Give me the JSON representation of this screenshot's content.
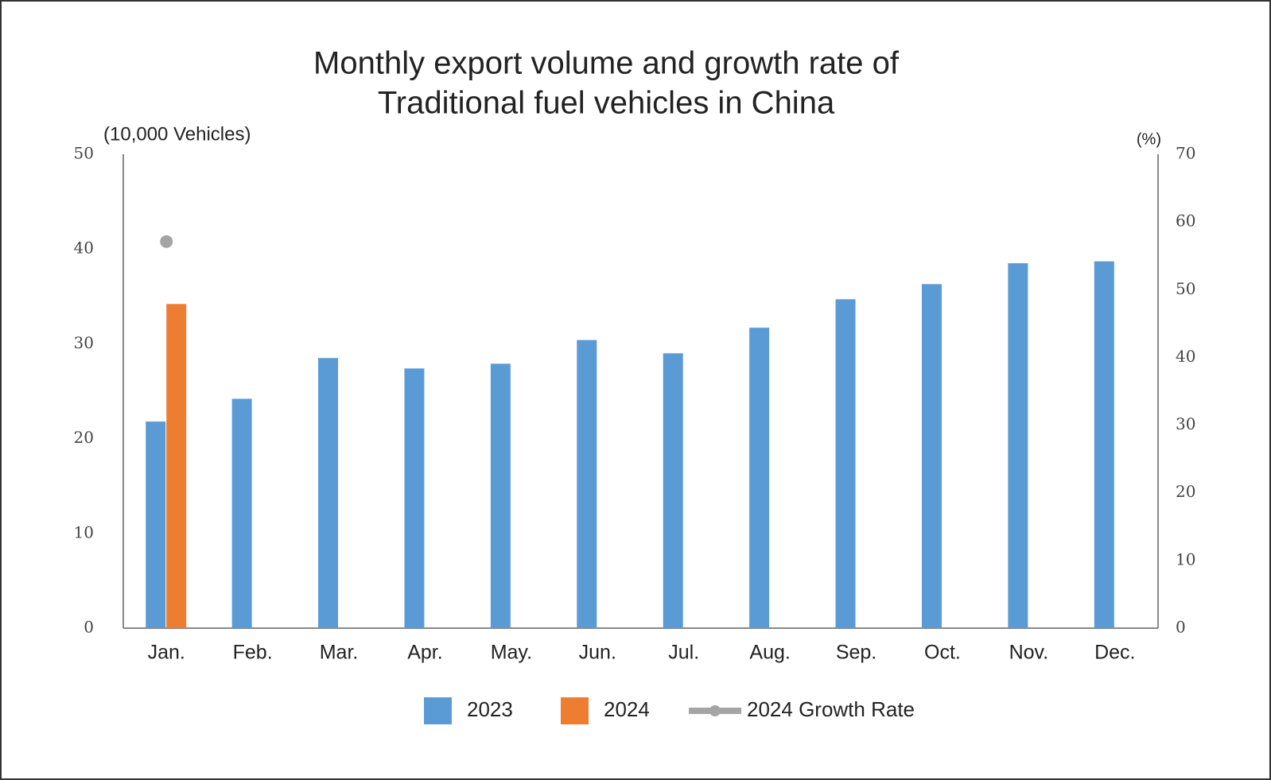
{
  "chart_data": {
    "type": "bar",
    "title": "Monthly export volume and growth rate of",
    "subtitle": "Traditional fuel vehicles in China",
    "y_label": "(10,000 Vehicles)",
    "y2_label": "(%)",
    "categories": [
      "Jan.",
      "Feb.",
      "Mar.",
      "Apr.",
      "May.",
      "Jun.",
      "Jul.",
      "Aug.",
      "Sep.",
      "Oct.",
      "Nov.",
      "Dec."
    ],
    "series": [
      {
        "name": "2023",
        "color": "#5b9bd5",
        "values": [
          21.8,
          24.2,
          28.5,
          27.4,
          27.9,
          30.4,
          29.0,
          31.7,
          34.7,
          36.3,
          38.5,
          38.7
        ]
      },
      {
        "name": "2024",
        "color": "#ed7d31",
        "values": [
          34.2,
          null,
          null,
          null,
          null,
          null,
          null,
          null,
          null,
          null,
          null,
          null
        ]
      },
      {
        "name": "2024 Growth Rate",
        "color": "#a5a5a5",
        "type": "line",
        "axis": "y2",
        "values": [
          57.1,
          null,
          null,
          null,
          null,
          null,
          null,
          null,
          null,
          null,
          null,
          null
        ]
      }
    ],
    "ylim": [
      0,
      50
    ],
    "yticks": [
      0,
      10,
      20,
      30,
      40,
      50
    ],
    "y2lim": [
      0,
      70
    ],
    "y2ticks": [
      0,
      10,
      20,
      30,
      40,
      50,
      60,
      70
    ],
    "grid": false,
    "legend": "bottom"
  }
}
